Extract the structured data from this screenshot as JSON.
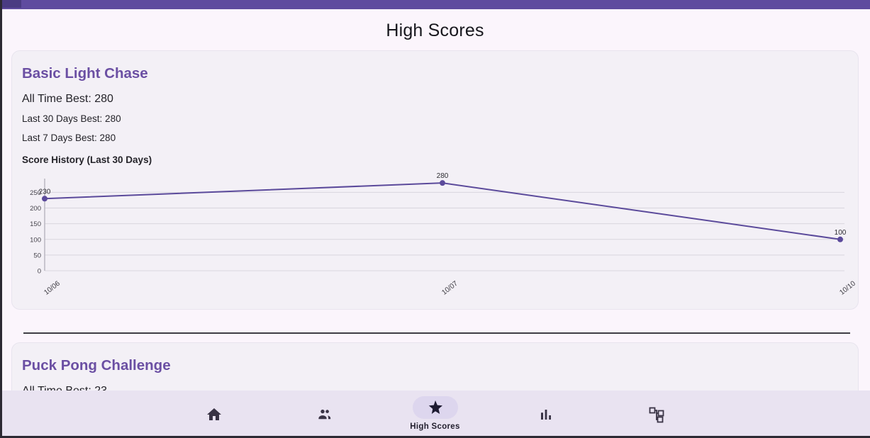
{
  "header": {
    "title": "High Scores"
  },
  "card1": {
    "title": "Basic Light Chase",
    "all_time_best": "All Time Best: 280",
    "last_30_days_best": "Last 30 Days Best: 280",
    "last_7_days_best": "Last 7 Days Best: 280",
    "history_label": "Score History (Last 30 Days)"
  },
  "card2": {
    "title": "Puck Pong Challenge",
    "all_time_best": "All Time Best: 23"
  },
  "nav": {
    "items": [
      {
        "name": "home",
        "icon": "home-icon",
        "label": "",
        "selected": false
      },
      {
        "name": "players",
        "icon": "people-icon",
        "label": "",
        "selected": false
      },
      {
        "name": "high-scores",
        "icon": "star-icon",
        "label": "High Scores",
        "selected": true
      },
      {
        "name": "stats",
        "icon": "bar-chart-icon",
        "label": "",
        "selected": false
      },
      {
        "name": "games",
        "icon": "schema-icon",
        "label": "",
        "selected": false
      }
    ]
  },
  "colors": {
    "topbar": "#5f4b9f",
    "accent_purple": "#6b4fa3",
    "page_background": "#fbf5fc",
    "card_background": "#f3f0f6",
    "nav_background": "#e9e3f1",
    "nav_pill": "#ddd6ee",
    "line_color": "#5b4a9b"
  },
  "chart_data": {
    "type": "line",
    "title": "Score History (Last 30 Days)",
    "x": [
      "10/06",
      "10/07",
      "10/10"
    ],
    "values": [
      230,
      280,
      100
    ],
    "point_labels": [
      "230",
      "280",
      "100"
    ],
    "y_ticks": [
      0,
      50,
      100,
      150,
      200,
      250
    ],
    "ylim": [
      0,
      312
    ],
    "xlabel": "",
    "ylabel": "",
    "grid": true,
    "legend": false,
    "line_color": "#5b4a9b"
  }
}
